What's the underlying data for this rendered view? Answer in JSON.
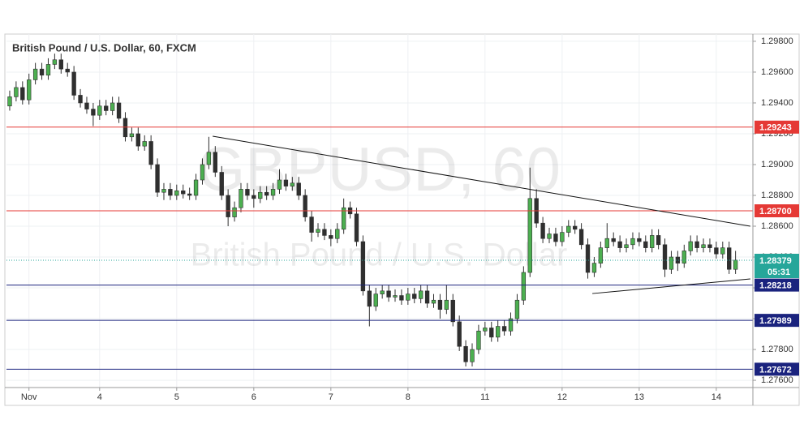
{
  "chart_data": {
    "type": "candlestick",
    "title": "British Pound / U.S. Dollar, 60, FXCM",
    "watermark": "GBPUSD, 60",
    "watermark_subtitle": "British Pound / U.S. Dollar",
    "up_color": "#4caf50",
    "down_color": "#2f2f2f",
    "grid": true,
    "xlim": [
      -0.5,
      115.7
    ],
    "xticks": [
      {
        "value": 3,
        "label": "Nov"
      },
      {
        "value": 14,
        "label": "4"
      },
      {
        "value": 26,
        "label": "5"
      },
      {
        "value": 38,
        "label": "6"
      },
      {
        "value": 50,
        "label": "7"
      },
      {
        "value": 62,
        "label": "8"
      },
      {
        "value": 74,
        "label": "11"
      },
      {
        "value": 86,
        "label": "12"
      },
      {
        "value": 98,
        "label": "13"
      },
      {
        "value": 110,
        "label": "14"
      }
    ],
    "ylim": [
      1.27553,
      1.29847
    ],
    "yticks": [
      {
        "value": 1.276,
        "label": "1.27600"
      },
      {
        "value": 1.278,
        "label": "1.27800"
      },
      {
        "value": 1.28,
        "label": "1.28000"
      },
      {
        "value": 1.282,
        "label": "1.28200"
      },
      {
        "value": 1.284,
        "label": "1.28400"
      },
      {
        "value": 1.286,
        "label": "1.28600"
      },
      {
        "value": 1.288,
        "label": "1.28800"
      },
      {
        "value": 1.29,
        "label": "1.29000"
      },
      {
        "value": 1.292,
        "label": "1.29200"
      },
      {
        "value": 1.294,
        "label": "1.29400"
      },
      {
        "value": 1.296,
        "label": "1.29600"
      },
      {
        "value": 1.298,
        "label": "1.29800"
      }
    ],
    "levels": [
      {
        "value": 1.29243,
        "color": "#e53935"
      },
      {
        "value": 1.287,
        "label": "1.28700",
        "color": "#e53935"
      },
      {
        "value": 1.28218,
        "color": "#1a237e"
      },
      {
        "value": 1.27989,
        "color": "#1a237e"
      },
      {
        "value": 1.27672,
        "color": "#1a237e"
      }
    ],
    "current_price": {
      "value": 1.28379,
      "countdown": "05:31",
      "color": "#26a69a"
    },
    "trendlines": [
      {
        "x": [
          31.6,
          115.3
        ],
        "y": [
          1.29184,
          1.286
        ]
      },
      {
        "x": [
          90.7,
          115.3
        ],
        "y": [
          1.28163,
          1.28258
        ]
      }
    ],
    "candles": [
      [
        1.2938,
        1.2948,
        1.2935,
        1.2944
      ],
      [
        1.2944,
        1.2954,
        1.2941,
        1.295
      ],
      [
        1.295,
        1.2954,
        1.2939,
        1.2942
      ],
      [
        1.2942,
        1.2959,
        1.2939,
        1.2955
      ],
      [
        1.2955,
        1.2966,
        1.2952,
        1.2962
      ],
      [
        1.2962,
        1.2966,
        1.2955,
        1.2958
      ],
      [
        1.2958,
        1.2969,
        1.2955,
        1.2965
      ],
      [
        1.2965,
        1.2972,
        1.2962,
        1.2968
      ],
      [
        1.2968,
        1.2972,
        1.2959,
        1.2962
      ],
      [
        1.2962,
        1.2966,
        1.2957,
        1.296
      ],
      [
        1.296,
        1.2964,
        1.2942,
        1.2945
      ],
      [
        1.2945,
        1.2949,
        1.2937,
        1.294
      ],
      [
        1.294,
        1.2944,
        1.2933,
        1.2936
      ],
      [
        1.2936,
        1.294,
        1.2925,
        1.2932
      ],
      [
        1.2932,
        1.2942,
        1.2929,
        1.2938
      ],
      [
        1.2938,
        1.2942,
        1.2932,
        1.2935
      ],
      [
        1.2935,
        1.2944,
        1.2932,
        1.294
      ],
      [
        1.294,
        1.2944,
        1.2927,
        1.293
      ],
      [
        1.293,
        1.2934,
        1.2915,
        1.2918
      ],
      [
        1.2918,
        1.2924,
        1.2915,
        1.292
      ],
      [
        1.292,
        1.2924,
        1.2909,
        1.2912
      ],
      [
        1.2912,
        1.2919,
        1.2909,
        1.2915
      ],
      [
        1.2915,
        1.2919,
        1.2897,
        1.29
      ],
      [
        1.29,
        1.2904,
        1.2879,
        1.2882
      ],
      [
        1.2882,
        1.2888,
        1.2877,
        1.2884
      ],
      [
        1.2884,
        1.2888,
        1.2877,
        1.288
      ],
      [
        1.288,
        1.2887,
        1.2877,
        1.2883
      ],
      [
        1.2883,
        1.2887,
        1.2878,
        1.2881
      ],
      [
        1.2881,
        1.2885,
        1.2877,
        1.288
      ],
      [
        1.288,
        1.2894,
        1.2877,
        1.289
      ],
      [
        1.289,
        1.2904,
        1.2887,
        1.29
      ],
      [
        1.29,
        1.2918,
        1.2897,
        1.2908
      ],
      [
        1.2908,
        1.2912,
        1.2892,
        1.2895
      ],
      [
        1.2895,
        1.2899,
        1.2877,
        1.288
      ],
      [
        1.288,
        1.2884,
        1.286,
        1.2866
      ],
      [
        1.2866,
        1.2876,
        1.2863,
        1.2872
      ],
      [
        1.2872,
        1.2888,
        1.2869,
        1.2884
      ],
      [
        1.2884,
        1.2888,
        1.2877,
        1.288
      ],
      [
        1.288,
        1.2884,
        1.2872,
        1.2878
      ],
      [
        1.2878,
        1.2886,
        1.2875,
        1.2882
      ],
      [
        1.2882,
        1.2886,
        1.2877,
        1.288
      ],
      [
        1.288,
        1.2888,
        1.2877,
        1.2884
      ],
      [
        1.2884,
        1.2897,
        1.2881,
        1.289
      ],
      [
        1.289,
        1.2894,
        1.2883,
        1.2886
      ],
      [
        1.2886,
        1.2892,
        1.2883,
        1.2888
      ],
      [
        1.2888,
        1.2892,
        1.2877,
        1.288
      ],
      [
        1.288,
        1.2884,
        1.2863,
        1.2866
      ],
      [
        1.2866,
        1.287,
        1.285,
        1.2856
      ],
      [
        1.2856,
        1.2862,
        1.2853,
        1.2858
      ],
      [
        1.2858,
        1.2862,
        1.2851,
        1.2854
      ],
      [
        1.2854,
        1.2858,
        1.2847,
        1.2852
      ],
      [
        1.2852,
        1.2862,
        1.2849,
        1.2858
      ],
      [
        1.2858,
        1.2878,
        1.2855,
        1.2872
      ],
      [
        1.2872,
        1.2876,
        1.2865,
        1.2868
      ],
      [
        1.2868,
        1.2872,
        1.2847,
        1.285
      ],
      [
        1.285,
        1.2854,
        1.2815,
        1.2818
      ],
      [
        1.2818,
        1.2822,
        1.2795,
        1.2808
      ],
      [
        1.2808,
        1.282,
        1.2805,
        1.2816
      ],
      [
        1.2816,
        1.2822,
        1.2813,
        1.2818
      ],
      [
        1.2818,
        1.2822,
        1.2811,
        1.2814
      ],
      [
        1.2814,
        1.2819,
        1.2811,
        1.2815
      ],
      [
        1.2815,
        1.2819,
        1.2809,
        1.2812
      ],
      [
        1.2812,
        1.282,
        1.2809,
        1.2816
      ],
      [
        1.2816,
        1.282,
        1.281,
        1.2813
      ],
      [
        1.2813,
        1.2822,
        1.281,
        1.2818
      ],
      [
        1.2818,
        1.2822,
        1.2807,
        1.281
      ],
      [
        1.281,
        1.2816,
        1.2807,
        1.2812
      ],
      [
        1.2812,
        1.2816,
        1.28,
        1.2806
      ],
      [
        1.2806,
        1.2822,
        1.2803,
        1.2812
      ],
      [
        1.2812,
        1.2816,
        1.2795,
        1.2798
      ],
      [
        1.2798,
        1.2802,
        1.2779,
        1.2782
      ],
      [
        1.2782,
        1.2786,
        1.2769,
        1.2772
      ],
      [
        1.2772,
        1.2784,
        1.2769,
        1.278
      ],
      [
        1.278,
        1.2796,
        1.2777,
        1.2792
      ],
      [
        1.2792,
        1.2798,
        1.2789,
        1.2794
      ],
      [
        1.2794,
        1.2798,
        1.2785,
        1.2788
      ],
      [
        1.2788,
        1.2799,
        1.2785,
        1.2795
      ],
      [
        1.2795,
        1.2799,
        1.2789,
        1.2792
      ],
      [
        1.2792,
        1.2804,
        1.2789,
        1.28
      ],
      [
        1.28,
        1.2816,
        1.2797,
        1.2812
      ],
      [
        1.2812,
        1.2834,
        1.2809,
        1.283
      ],
      [
        1.283,
        1.2898,
        1.2827,
        1.2878
      ],
      [
        1.2878,
        1.2884,
        1.2859,
        1.2862
      ],
      [
        1.2862,
        1.2866,
        1.2849,
        1.2852
      ],
      [
        1.2852,
        1.2859,
        1.2849,
        1.2855
      ],
      [
        1.2855,
        1.2859,
        1.2847,
        1.285
      ],
      [
        1.285,
        1.286,
        1.2847,
        1.2856
      ],
      [
        1.2856,
        1.2864,
        1.2853,
        1.286
      ],
      [
        1.286,
        1.2864,
        1.2855,
        1.2858
      ],
      [
        1.2858,
        1.2862,
        1.2845,
        1.2848
      ],
      [
        1.2848,
        1.2852,
        1.2826,
        1.283
      ],
      [
        1.283,
        1.284,
        1.2827,
        1.2836
      ],
      [
        1.2836,
        1.285,
        1.2833,
        1.2846
      ],
      [
        1.2846,
        1.2862,
        1.2843,
        1.2852
      ],
      [
        1.2852,
        1.2856,
        1.2847,
        1.285
      ],
      [
        1.285,
        1.2854,
        1.2843,
        1.2846
      ],
      [
        1.2846,
        1.2852,
        1.2843,
        1.2848
      ],
      [
        1.2848,
        1.2856,
        1.2845,
        1.2852
      ],
      [
        1.2852,
        1.2856,
        1.2847,
        1.285
      ],
      [
        1.285,
        1.2854,
        1.2843,
        1.2846
      ],
      [
        1.2846,
        1.2858,
        1.2843,
        1.2854
      ],
      [
        1.2854,
        1.2858,
        1.2845,
        1.2848
      ],
      [
        1.2848,
        1.2852,
        1.2827,
        1.2832
      ],
      [
        1.2832,
        1.2844,
        1.2829,
        1.284
      ],
      [
        1.284,
        1.2844,
        1.2831,
        1.2836
      ],
      [
        1.2836,
        1.2848,
        1.2833,
        1.2844
      ],
      [
        1.2844,
        1.2854,
        1.2841,
        1.285
      ],
      [
        1.285,
        1.2854,
        1.2843,
        1.2846
      ],
      [
        1.2846,
        1.2852,
        1.2843,
        1.2848
      ],
      [
        1.2848,
        1.2852,
        1.2843,
        1.2846
      ],
      [
        1.2846,
        1.285,
        1.2839,
        1.2842
      ],
      [
        1.2842,
        1.285,
        1.2839,
        1.2846
      ],
      [
        1.2846,
        1.285,
        1.2829,
        1.2832
      ],
      [
        1.2832,
        1.2844,
        1.2829,
        1.2838
      ]
    ]
  }
}
